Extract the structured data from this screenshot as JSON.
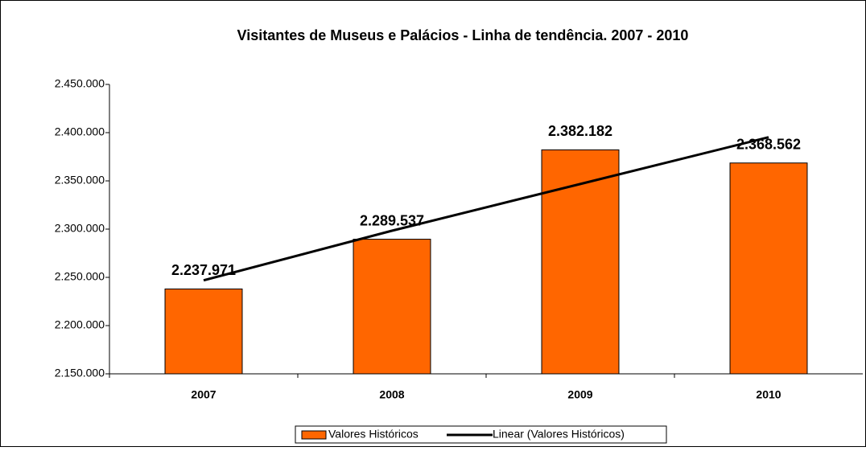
{
  "chart_data": {
    "type": "bar",
    "title": "Visitantes de Museus e Palácios - Linha de tendência. 2007 - 2010",
    "categories": [
      "2007",
      "2008",
      "2009",
      "2010"
    ],
    "series": [
      {
        "name": "Valores Históricos",
        "color": "#ff6600",
        "values": [
          2237971,
          2289537,
          2382182,
          2368562
        ],
        "value_labels": [
          "2.237.971",
          "2.289.537",
          "2.382.182",
          "2.368.562"
        ]
      },
      {
        "name": "Linear (Valores Históricos)",
        "type": "line",
        "color": "#000000",
        "values": [
          2246900,
          2298342,
          2346784,
          2395226
        ]
      }
    ],
    "ylim": [
      2150000,
      2450000
    ],
    "yticks": [
      {
        "value": 2150000,
        "label": "2.150.000"
      },
      {
        "value": 2200000,
        "label": "2.200.000"
      },
      {
        "value": 2250000,
        "label": "2.250.000"
      },
      {
        "value": 2300000,
        "label": "2.300.000"
      },
      {
        "value": 2350000,
        "label": "2.350.000"
      },
      {
        "value": 2400000,
        "label": "2.400.000"
      },
      {
        "value": 2450000,
        "label": "2.450.000"
      }
    ],
    "grid": false,
    "legend": "bottom"
  }
}
